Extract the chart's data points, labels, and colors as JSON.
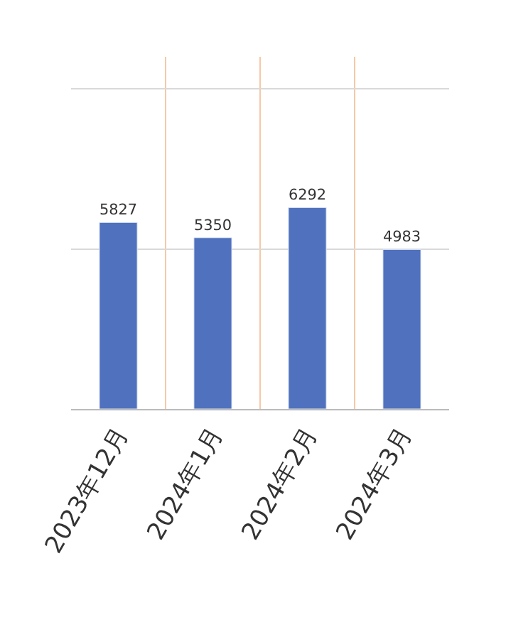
{
  "chart_data": {
    "type": "bar",
    "categories": [
      "2023年12月",
      "2024年1月",
      "2024年2月",
      "2024年3月"
    ],
    "values": [
      5827,
      5350,
      6292,
      4983
    ],
    "color": "#4f71be",
    "ylim": [
      0,
      11000
    ],
    "yticks": [
      {
        "value": 0,
        "label": null
      },
      {
        "value": 5000,
        "label": null
      },
      {
        "value": 10000,
        "label": null
      }
    ],
    "grid": true,
    "data_labels": true,
    "tick_labels": "x"
  }
}
